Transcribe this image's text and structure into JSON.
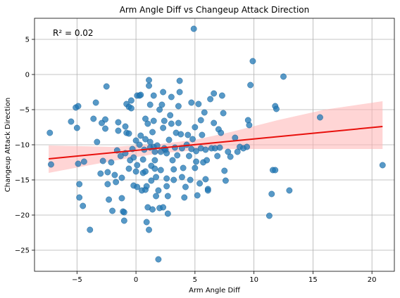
{
  "chart_data": {
    "type": "scatter",
    "title": "Arm Angle Diff vs Changeup Attack Direction",
    "xlabel": "Arm Angle Diff",
    "ylabel": "Changeup Attack Direction",
    "annotation": "R² = 0.02",
    "xlim": [
      -8.6,
      21.9
    ],
    "ylim": [
      -28,
      8
    ],
    "xticks": [
      -5,
      0,
      5,
      10,
      15,
      20
    ],
    "yticks": [
      5,
      0,
      -5,
      -10,
      -15,
      -20,
      -25
    ],
    "grid": true,
    "colors": {
      "points": "#1f77b4",
      "fit_line": "#e8100c",
      "ci_band": "#ffb3b3"
    },
    "regression": {
      "x": [
        -7.4,
        20.9
      ],
      "y": [
        -12.0,
        -7.4
      ]
    },
    "confidence_band": {
      "upper": [
        [
          -7.4,
          -10.1
        ],
        [
          -2,
          -10.3
        ],
        [
          2,
          -9.9
        ],
        [
          5,
          -9.3
        ],
        [
          8,
          -8.2
        ],
        [
          12,
          -6.5
        ],
        [
          16,
          -5.0
        ],
        [
          20.9,
          -3.8
        ]
      ],
      "lower": [
        [
          -7.4,
          -14.0
        ],
        [
          -2,
          -12.3
        ],
        [
          2,
          -11.2
        ],
        [
          5,
          -10.8
        ],
        [
          8,
          -10.6
        ],
        [
          12,
          -10.6
        ],
        [
          16,
          -10.6
        ],
        [
          20.9,
          -10.6
        ]
      ]
    },
    "points": [
      [
        -7.3,
        -8.3
      ],
      [
        -7.2,
        -12.8
      ],
      [
        -5.5,
        -6.7
      ],
      [
        -5.1,
        -4.7
      ],
      [
        -4.9,
        -4.5
      ],
      [
        -5.0,
        -7.6
      ],
      [
        -4.9,
        -12.7
      ],
      [
        -4.8,
        -17.5
      ],
      [
        -4.8,
        -15.6
      ],
      [
        -4.5,
        -18.7
      ],
      [
        -4.4,
        -12.4
      ],
      [
        -3.9,
        -22.1
      ],
      [
        -3.6,
        -6.3
      ],
      [
        -3.4,
        -4.0
      ],
      [
        -3.3,
        -9.6
      ],
      [
        -3.0,
        -14.1
      ],
      [
        -2.8,
        -12.3
      ],
      [
        -2.9,
        -6.9
      ],
      [
        -2.6,
        -6.4
      ],
      [
        -2.6,
        -7.7
      ],
      [
        -2.5,
        -1.7
      ],
      [
        -2.4,
        -13.9
      ],
      [
        -2.4,
        -15.6
      ],
      [
        -2.3,
        -17.8
      ],
      [
        -2.1,
        -12.5
      ],
      [
        -2.0,
        -19.4
      ],
      [
        -1.8,
        -14.3
      ],
      [
        -1.7,
        -15.3
      ],
      [
        -1.6,
        -10.8
      ],
      [
        -1.5,
        -6.8
      ],
      [
        -1.5,
        -8.0
      ],
      [
        -1.3,
        -11.6
      ],
      [
        -1.2,
        -17.6
      ],
      [
        -1.2,
        -14.7
      ],
      [
        -1.1,
        -19.5
      ],
      [
        -1.0,
        -19.6
      ],
      [
        -1.0,
        -20.8
      ],
      [
        -0.9,
        -11.2
      ],
      [
        -0.8,
        -4.2
      ],
      [
        -0.9,
        -7.4
      ],
      [
        -0.8,
        -8.3
      ],
      [
        -0.6,
        -4.6
      ],
      [
        -0.6,
        -8.4
      ],
      [
        -0.6,
        -13.4
      ],
      [
        -0.5,
        -12.2
      ],
      [
        -0.4,
        -4.8
      ],
      [
        -0.4,
        -3.7
      ],
      [
        -0.3,
        -10.6
      ],
      [
        -0.2,
        -15.8
      ],
      [
        -0.2,
        -11.8
      ],
      [
        0.0,
        -13.8
      ],
      [
        0.0,
        -9.4
      ],
      [
        0.1,
        -12.9
      ],
      [
        0.1,
        -3.0
      ],
      [
        0.1,
        -16.0
      ],
      [
        0.3,
        -3.0
      ],
      [
        0.3,
        -10.0
      ],
      [
        0.4,
        -2.9
      ],
      [
        0.4,
        -8.7
      ],
      [
        0.5,
        -16.5
      ],
      [
        0.6,
        -12.1
      ],
      [
        0.6,
        -14.0
      ],
      [
        0.7,
        -10.7
      ],
      [
        0.8,
        -9.2
      ],
      [
        0.8,
        -6.3
      ],
      [
        0.8,
        -13.8
      ],
      [
        0.8,
        -16.4
      ],
      [
        0.9,
        -15.9
      ],
      [
        0.9,
        -21.0
      ],
      [
        1.0,
        -18.9
      ],
      [
        1.0,
        -7.0
      ],
      [
        1.1,
        -22.1
      ],
      [
        1.1,
        -1.6
      ],
      [
        1.1,
        -0.8
      ],
      [
        1.2,
        -4.3
      ],
      [
        1.2,
        -9.6
      ],
      [
        1.2,
        -10.4
      ],
      [
        1.3,
        -13.0
      ],
      [
        1.3,
        -15.1
      ],
      [
        1.4,
        -19.2
      ],
      [
        1.4,
        -8.2
      ],
      [
        1.5,
        -3.0
      ],
      [
        1.5,
        -6.6
      ],
      [
        1.5,
        -10.3
      ],
      [
        1.6,
        -11.0
      ],
      [
        1.6,
        -12.2
      ],
      [
        1.6,
        -13.4
      ],
      [
        1.7,
        -14.6
      ],
      [
        1.7,
        -17.3
      ],
      [
        1.8,
        -10.1
      ],
      [
        1.9,
        -26.3
      ],
      [
        1.9,
        -16.5
      ],
      [
        2.0,
        -19.0
      ],
      [
        2.0,
        -5.0
      ],
      [
        2.1,
        -13.6
      ],
      [
        2.1,
        -11.0
      ],
      [
        2.2,
        -4.3
      ],
      [
        2.3,
        -7.6
      ],
      [
        2.3,
        -2.5
      ],
      [
        2.3,
        -18.9
      ],
      [
        2.4,
        -10.5
      ],
      [
        2.4,
        -6.6
      ],
      [
        2.5,
        -10.7
      ],
      [
        2.6,
        -11.2
      ],
      [
        2.6,
        -14.8
      ],
      [
        2.6,
        -15.9
      ],
      [
        2.7,
        -17.3
      ],
      [
        2.7,
        -19.8
      ],
      [
        2.8,
        -9.3
      ],
      [
        2.9,
        -5.8
      ],
      [
        3.0,
        -3.2
      ],
      [
        3.0,
        -7.0
      ],
      [
        3.1,
        -12.2
      ],
      [
        3.2,
        -13.5
      ],
      [
        3.2,
        -15.0
      ],
      [
        3.3,
        -10.4
      ],
      [
        3.4,
        -8.3
      ],
      [
        3.5,
        -11.5
      ],
      [
        3.6,
        -4.5
      ],
      [
        3.6,
        -6.9
      ],
      [
        3.7,
        -0.9
      ],
      [
        3.7,
        -2.5
      ],
      [
        3.8,
        -8.5
      ],
      [
        3.9,
        -10.5
      ],
      [
        3.9,
        -14.6
      ],
      [
        4.0,
        -13.3
      ],
      [
        4.1,
        -17.5
      ],
      [
        4.2,
        -16.0
      ],
      [
        4.3,
        -10.0
      ],
      [
        4.4,
        -8.6
      ],
      [
        4.5,
        -11.6
      ],
      [
        4.6,
        -15.0
      ],
      [
        4.7,
        -4.0
      ],
      [
        4.7,
        -10.6
      ],
      [
        4.8,
        -9.2
      ],
      [
        4.9,
        6.5
      ],
      [
        5.0,
        -13.3
      ],
      [
        5.0,
        -7.5
      ],
      [
        5.1,
        -10.9
      ],
      [
        5.1,
        -12.4
      ],
      [
        5.2,
        -17.2
      ],
      [
        5.3,
        -4.2
      ],
      [
        5.4,
        -15.5
      ],
      [
        5.5,
        -6.5
      ],
      [
        5.5,
        -10.5
      ],
      [
        5.6,
        -8.6
      ],
      [
        5.7,
        -12.5
      ],
      [
        5.8,
        -5.4
      ],
      [
        5.9,
        -14.9
      ],
      [
        5.9,
        -10.7
      ],
      [
        6.0,
        -12.2
      ],
      [
        6.1,
        -16.3
      ],
      [
        6.1,
        -16.5
      ],
      [
        6.3,
        -3.5
      ],
      [
        6.4,
        -10.5
      ],
      [
        6.6,
        -2.7
      ],
      [
        6.6,
        -6.9
      ],
      [
        6.7,
        -10.5
      ],
      [
        6.9,
        -11.6
      ],
      [
        7.0,
        -7.8
      ],
      [
        7.1,
        -10.4
      ],
      [
        7.2,
        -8.3
      ],
      [
        7.3,
        -3.0
      ],
      [
        7.4,
        -5.5
      ],
      [
        7.5,
        -13.7
      ],
      [
        7.6,
        -15.1
      ],
      [
        7.8,
        -11.0
      ],
      [
        8.0,
        -11.7
      ],
      [
        8.4,
        -9.0
      ],
      [
        8.6,
        -11.0
      ],
      [
        8.8,
        -10.3
      ],
      [
        9.1,
        -10.5
      ],
      [
        9.4,
        -10.3
      ],
      [
        9.5,
        -6.5
      ],
      [
        9.6,
        -7.2
      ],
      [
        9.7,
        -1.5
      ],
      [
        9.9,
        1.9
      ],
      [
        11.3,
        -20.1
      ],
      [
        11.5,
        -17.0
      ],
      [
        11.6,
        -13.6
      ],
      [
        11.8,
        -13.6
      ],
      [
        11.8,
        -4.5
      ],
      [
        11.9,
        -4.9
      ],
      [
        12.5,
        -0.3
      ],
      [
        13.0,
        -16.5
      ],
      [
        15.6,
        -6.1
      ],
      [
        20.9,
        -12.9
      ]
    ]
  }
}
